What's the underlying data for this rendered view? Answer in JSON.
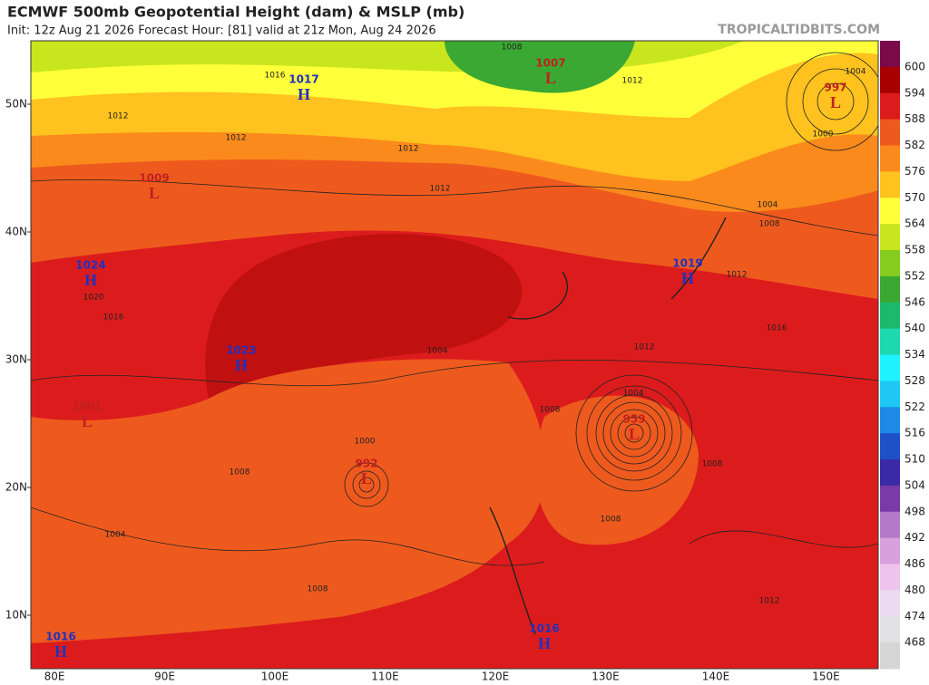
{
  "header": {
    "title": "ECMWF 500mb Geopotential Height (dam) & MSLP (mb)",
    "subtitle": "Init: 12z Aug 21 2026   Forecast Hour: [81]   valid at 21z Mon, Aug 24 2026",
    "source": "TROPICALTIDBITS.COM"
  },
  "colorbar": {
    "labels": [
      "600",
      "594",
      "588",
      "582",
      "576",
      "570",
      "564",
      "558",
      "552",
      "546",
      "540",
      "534",
      "528",
      "522",
      "516",
      "510",
      "504",
      "498",
      "492",
      "486",
      "480",
      "474",
      "468"
    ],
    "colors": [
      "#7a0a4a",
      "#a80000",
      "#dc1c1c",
      "#ee5a1e",
      "#fb8a1c",
      "#ffc21e",
      "#ffff3a",
      "#c8e61e",
      "#86cc1e",
      "#3aa832",
      "#1eb86a",
      "#1ed8b0",
      "#1ef2ff",
      "#1ec8f2",
      "#1e8ae6",
      "#1e50c8",
      "#3a2aa8",
      "#7a3aa8",
      "#b478c8",
      "#d8a0dc",
      "#eec4ee",
      "#ecdaf0",
      "#e2e2e6",
      "#d6d6d6"
    ]
  },
  "map": {
    "lat_labels": [
      "50N",
      "40N",
      "30N",
      "20N",
      "10N"
    ],
    "lon_labels": [
      "80E",
      "90E",
      "100E",
      "110E",
      "120E",
      "130E",
      "140E",
      "150E"
    ],
    "centers": [
      {
        "type": "H",
        "value": "1017"
      },
      {
        "type": "L",
        "value": "1007"
      },
      {
        "type": "L",
        "value": "997"
      },
      {
        "type": "L",
        "value": "1009"
      },
      {
        "type": "H",
        "value": "1024"
      },
      {
        "type": "H",
        "value": "1019"
      },
      {
        "type": "H",
        "value": "1023"
      },
      {
        "type": "L",
        "value": "1001"
      },
      {
        "type": "L",
        "value": "959"
      },
      {
        "type": "L",
        "value": "992"
      },
      {
        "type": "H",
        "value": "1016"
      },
      {
        "type": "H",
        "value": "1016"
      }
    ],
    "isobar_labels": [
      "1016",
      "1012",
      "1012",
      "1012",
      "1012",
      "1012",
      "1008",
      "1004",
      "1000",
      "1004",
      "1008",
      "1012",
      "1016",
      "1012",
      "1008",
      "1004",
      "1008",
      "1008",
      "1012",
      "1008",
      "1004",
      "1008",
      "1000",
      "1004",
      "1016",
      "1020"
    ]
  }
}
